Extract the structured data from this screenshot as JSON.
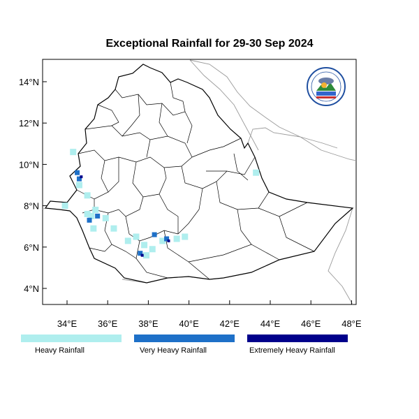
{
  "title": "Exceptional Rainfall for 29-30 Sep 2024",
  "axes": {
    "x_ticks": [
      {
        "value": 34,
        "label": "34°E"
      },
      {
        "value": 36,
        "label": "36°E"
      },
      {
        "value": 38,
        "label": "38°E"
      },
      {
        "value": 40,
        "label": "40°E"
      },
      {
        "value": 42,
        "label": "42°E"
      },
      {
        "value": 44,
        "label": "44°E"
      },
      {
        "value": 46,
        "label": "46°E"
      },
      {
        "value": 48,
        "label": "48°E"
      }
    ],
    "y_ticks": [
      {
        "value": 4,
        "label": "4°N"
      },
      {
        "value": 6,
        "label": "6°N"
      },
      {
        "value": 8,
        "label": "8°N"
      },
      {
        "value": 10,
        "label": "10°N"
      },
      {
        "value": 12,
        "label": "12°N"
      },
      {
        "value": 14,
        "label": "14°N"
      }
    ],
    "lon_range": [
      32.8,
      48.1
    ],
    "lat_range": [
      3.2,
      15.0
    ]
  },
  "legend": [
    {
      "label": "Heavy Rainfall",
      "color": "#afeeee"
    },
    {
      "label": "Very Heavy Rainfall",
      "color": "#1e70c8"
    },
    {
      "label": "Extremely Heavy Rainfall",
      "color": "#00008b"
    }
  ],
  "logo": {
    "icon": "meteorology-institute-logo"
  },
  "rainfall_areas": {
    "heavy": [
      [
        34.3,
        10.6
      ],
      [
        34.6,
        9.0
      ],
      [
        35.0,
        8.5
      ],
      [
        33.9,
        8.0
      ],
      [
        35.0,
        7.6
      ],
      [
        35.2,
        7.5
      ],
      [
        35.4,
        7.8
      ],
      [
        35.9,
        7.4
      ],
      [
        35.3,
        6.9
      ],
      [
        36.3,
        6.9
      ],
      [
        37.4,
        6.5
      ],
      [
        37.8,
        6.1
      ],
      [
        38.2,
        5.9
      ],
      [
        37.9,
        5.6
      ],
      [
        38.7,
        6.3
      ],
      [
        39.4,
        6.4
      ],
      [
        39.8,
        6.5
      ],
      [
        37.0,
        6.3
      ],
      [
        43.3,
        9.6
      ]
    ],
    "very_heavy": [
      [
        34.5,
        9.6
      ],
      [
        34.6,
        9.3
      ],
      [
        35.1,
        7.3
      ],
      [
        35.5,
        7.5
      ],
      [
        37.6,
        5.7
      ],
      [
        38.9,
        6.4
      ],
      [
        38.3,
        6.6
      ]
    ],
    "extremely_heavy": [
      [
        34.7,
        9.4
      ],
      [
        37.7,
        5.6
      ],
      [
        39.0,
        6.3
      ]
    ]
  }
}
